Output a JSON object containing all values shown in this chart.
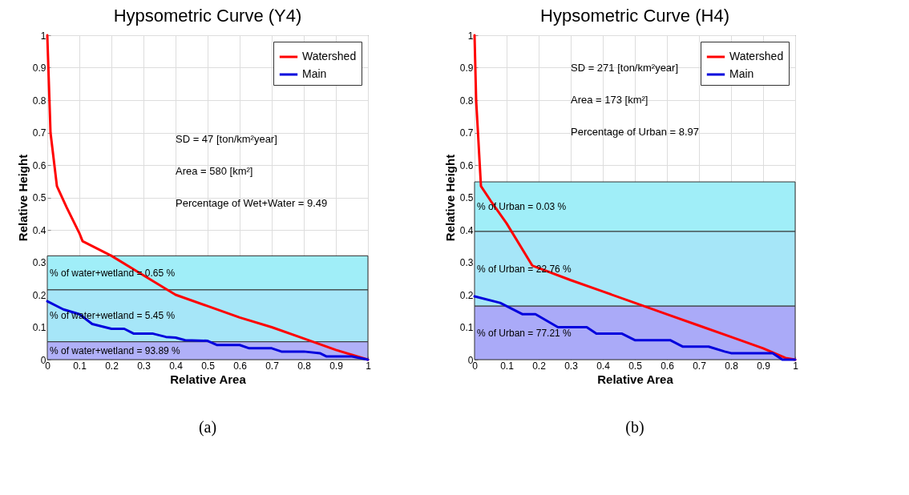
{
  "chart_data": [
    {
      "type": "line",
      "title": "Hypsometric Curve (Y4)",
      "xlabel": "Relative Area",
      "ylabel": "Relative Height",
      "xlim": [
        0,
        1
      ],
      "ylim": [
        0,
        1
      ],
      "xticks": [
        0,
        0.1,
        0.2,
        0.3,
        0.4,
        0.5,
        0.6,
        0.7,
        0.8,
        0.9,
        1
      ],
      "yticks": [
        0,
        0.1,
        0.2,
        0.3,
        0.4,
        0.5,
        0.6,
        0.7,
        0.8,
        0.9,
        1
      ],
      "grid": true,
      "legend": "top right",
      "line_style": "solid",
      "marker": "none",
      "series": [
        {
          "name": "Watershed",
          "color": "#ff0000",
          "x": [
            0,
            0.005,
            0.01,
            0.03,
            0.06,
            0.1,
            0.11,
            0.2,
            0.3,
            0.4,
            0.5,
            0.6,
            0.7,
            0.8,
            0.9,
            1
          ],
          "values": [
            1,
            0.85,
            0.7,
            0.535,
            0.47,
            0.39,
            0.365,
            0.32,
            0.26,
            0.2,
            0.165,
            0.13,
            0.1,
            0.065,
            0.03,
            0
          ]
        },
        {
          "name": "Main",
          "color": "#0000dd",
          "x": [
            0,
            0.05,
            0.1,
            0.14,
            0.2,
            0.24,
            0.27,
            0.33,
            0.37,
            0.4,
            0.43,
            0.5,
            0.53,
            0.6,
            0.63,
            0.7,
            0.73,
            0.8,
            0.85,
            0.87,
            0.95,
            1
          ],
          "values": [
            0.18,
            0.155,
            0.14,
            0.11,
            0.095,
            0.095,
            0.08,
            0.08,
            0.07,
            0.068,
            0.06,
            0.058,
            0.045,
            0.045,
            0.035,
            0.035,
            0.025,
            0.025,
            0.02,
            0.01,
            0.01,
            0
          ]
        }
      ],
      "bands": [
        {
          "axis": "y",
          "from": 0.215,
          "to": 0.32,
          "label": "% of water+wetland = 0.65 %",
          "color": "#a0eef8"
        },
        {
          "axis": "y",
          "from": 0.055,
          "to": 0.215,
          "label": "% of water+wetland = 5.45 %",
          "color": "#a6e6f8"
        },
        {
          "axis": "y",
          "from": 0,
          "to": 0.055,
          "label": "% of water+wetland = 93.89 %",
          "color": "#b0b0f8"
        }
      ],
      "annotations": [
        "SD = 47 [ton/km²year]",
        "Area = 580 [km²]",
        "Percentage of Wet+Water = 9.49",
        "(a)"
      ]
    },
    {
      "type": "line",
      "title": "Hypsometric Curve (H4)",
      "xlabel": "Relative Area",
      "ylabel": "Relative Height",
      "xlim": [
        0,
        1
      ],
      "ylim": [
        0,
        1
      ],
      "xticks": [
        0,
        0.1,
        0.2,
        0.3,
        0.4,
        0.5,
        0.6,
        0.7,
        0.8,
        0.9,
        1
      ],
      "yticks": [
        0,
        0.1,
        0.2,
        0.3,
        0.4,
        0.5,
        0.6,
        0.7,
        0.8,
        0.9,
        1
      ],
      "grid": true,
      "legend": "top right",
      "line_style": "solid",
      "marker": "none",
      "series": [
        {
          "name": "Watershed",
          "color": "#ff0000",
          "x": [
            0,
            0.005,
            0.02,
            0.05,
            0.1,
            0.18,
            0.3,
            0.4,
            0.5,
            0.6,
            0.7,
            0.8,
            0.9,
            0.97,
            1
          ],
          "values": [
            1,
            0.8,
            0.535,
            0.49,
            0.42,
            0.29,
            0.245,
            0.21,
            0.175,
            0.14,
            0.105,
            0.07,
            0.035,
            0.005,
            0
          ]
        },
        {
          "name": "Main",
          "color": "#0000dd",
          "x": [
            0,
            0.08,
            0.15,
            0.19,
            0.26,
            0.35,
            0.38,
            0.46,
            0.5,
            0.61,
            0.65,
            0.73,
            0.78,
            0.8,
            0.93,
            0.96,
            1
          ],
          "values": [
            0.195,
            0.175,
            0.14,
            0.14,
            0.1,
            0.1,
            0.08,
            0.08,
            0.06,
            0.06,
            0.04,
            0.04,
            0.025,
            0.02,
            0.02,
            0,
            0
          ]
        }
      ],
      "bands": [
        {
          "axis": "y",
          "from": 0.395,
          "to": 0.548,
          "label": "% of Urban = 0.03 %",
          "color": "#a0eef8"
        },
        {
          "axis": "y",
          "from": 0.165,
          "to": 0.395,
          "label": "% of Urban = 22.76 %",
          "color": "#a6e6f8"
        },
        {
          "axis": "y",
          "from": 0,
          "to": 0.165,
          "label": "% of Urban = 77.21 %",
          "color": "#aaaaf8"
        }
      ],
      "annotations": [
        "SD = 271 [ton/km²year]",
        "Area = 173 [km²]",
        "Percentage of Urban = 8.97",
        "(b)"
      ]
    }
  ]
}
